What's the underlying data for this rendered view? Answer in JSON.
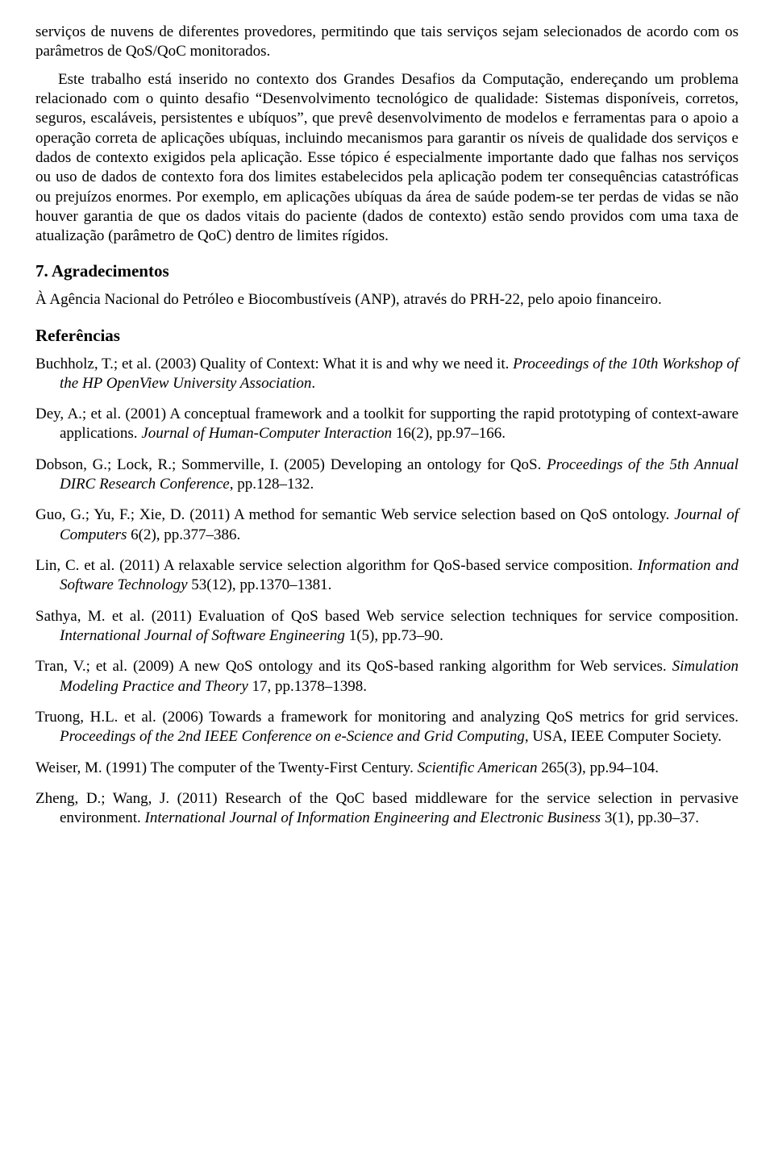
{
  "para1": "serviços de nuvens de diferentes provedores, permitindo que tais serviços sejam selecionados de acordo com os parâmetros de QoS/QoC monitorados.",
  "para2": "Este trabalho está inserido no contexto dos Grandes Desafios da Computação, endereçando um problema relacionado com o quinto desafio “Desenvolvimento tecnológico de qualidade: Sistemas disponíveis, corretos, seguros, escaláveis, persistentes e ubíquos”, que prevê desenvolvimento de modelos e ferramentas para o apoio a operação correta de aplicações ubíquas, incluindo mecanismos para garantir os níveis de qualidade dos serviços e dados de contexto exigidos pela aplicação. Esse tópico é especialmente importante dado que falhas nos serviços ou uso de dados de contexto fora dos limites estabelecidos pela aplicação podem ter consequências catastróficas ou prejuízos enormes. Por exemplo, em aplicações ubíquas da área de saúde podem-se ter perdas de vidas se não houver garantia de que os dados vitais do paciente (dados de contexto) estão sendo providos com uma taxa de atualização (parâmetro de QoC) dentro de limites rígidos.",
  "h_ack": "7. Agradecimentos",
  "para_ack": "À Agência Nacional do Petróleo e Biocombustíveis (ANP), através do PRH-22, pelo apoio financeiro.",
  "h_ref": "Referências",
  "refs": [
    {
      "pre": "Buchholz, T.; et al. (2003) Quality of Context: What it is and why we need it. ",
      "it": "Proceedings of the 10th Workshop of the HP OpenView University Association",
      "post": "."
    },
    {
      "pre": "Dey, A.; et al. (2001) A conceptual framework and a toolkit for supporting the rapid prototyping of context-aware applications. ",
      "it": "Journal of Human-Computer Interaction",
      "post": " 16(2), pp.97–166."
    },
    {
      "pre": "Dobson, G.; Lock, R.; Sommerville, I. (2005) Developing an ontology for QoS. ",
      "it": "Proceedings of the 5th Annual DIRC Research Conference",
      "post": ", pp.128–132."
    },
    {
      "pre": "Guo, G.; Yu, F.; Xie, D. (2011) A method for semantic Web service selection based on QoS ontology. ",
      "it": "Journal of Computers",
      "post": " 6(2), pp.377–386."
    },
    {
      "pre": "Lin, C. et al. (2011) A relaxable service selection algorithm for QoS-based service composition. ",
      "it": "Information and Software Technology",
      "post": " 53(12), pp.1370–1381."
    },
    {
      "pre": "Sathya, M. et al. (2011) Evaluation of QoS based Web service selection techniques for service composition. ",
      "it": "International Journal of Software Engineering",
      "post": " 1(5), pp.73–90."
    },
    {
      "pre": "Tran, V.; et al. (2009) A new QoS ontology and its QoS-based ranking algorithm for Web services. ",
      "it": "Simulation Modeling Practice and Theory",
      "post": " 17, pp.1378–1398."
    },
    {
      "pre": "Truong, H.L. et al. (2006) Towards a framework for monitoring and analyzing QoS metrics for grid services. ",
      "it": "Proceedings of the 2nd IEEE Conference on e-Science and Grid Computing",
      "post": ", USA, IEEE Computer Society."
    },
    {
      "pre": "Weiser, M. (1991) The computer of the Twenty-First Century. ",
      "it": "Scientific American",
      "post": " 265(3), pp.94–104."
    },
    {
      "pre": "Zheng, D.; Wang, J. (2011) Research of the QoC based middleware for the service selection in pervasive environment. ",
      "it": "International Journal of Information Engineering and Electronic Business",
      "post": " 3(1), pp.30–37."
    }
  ]
}
